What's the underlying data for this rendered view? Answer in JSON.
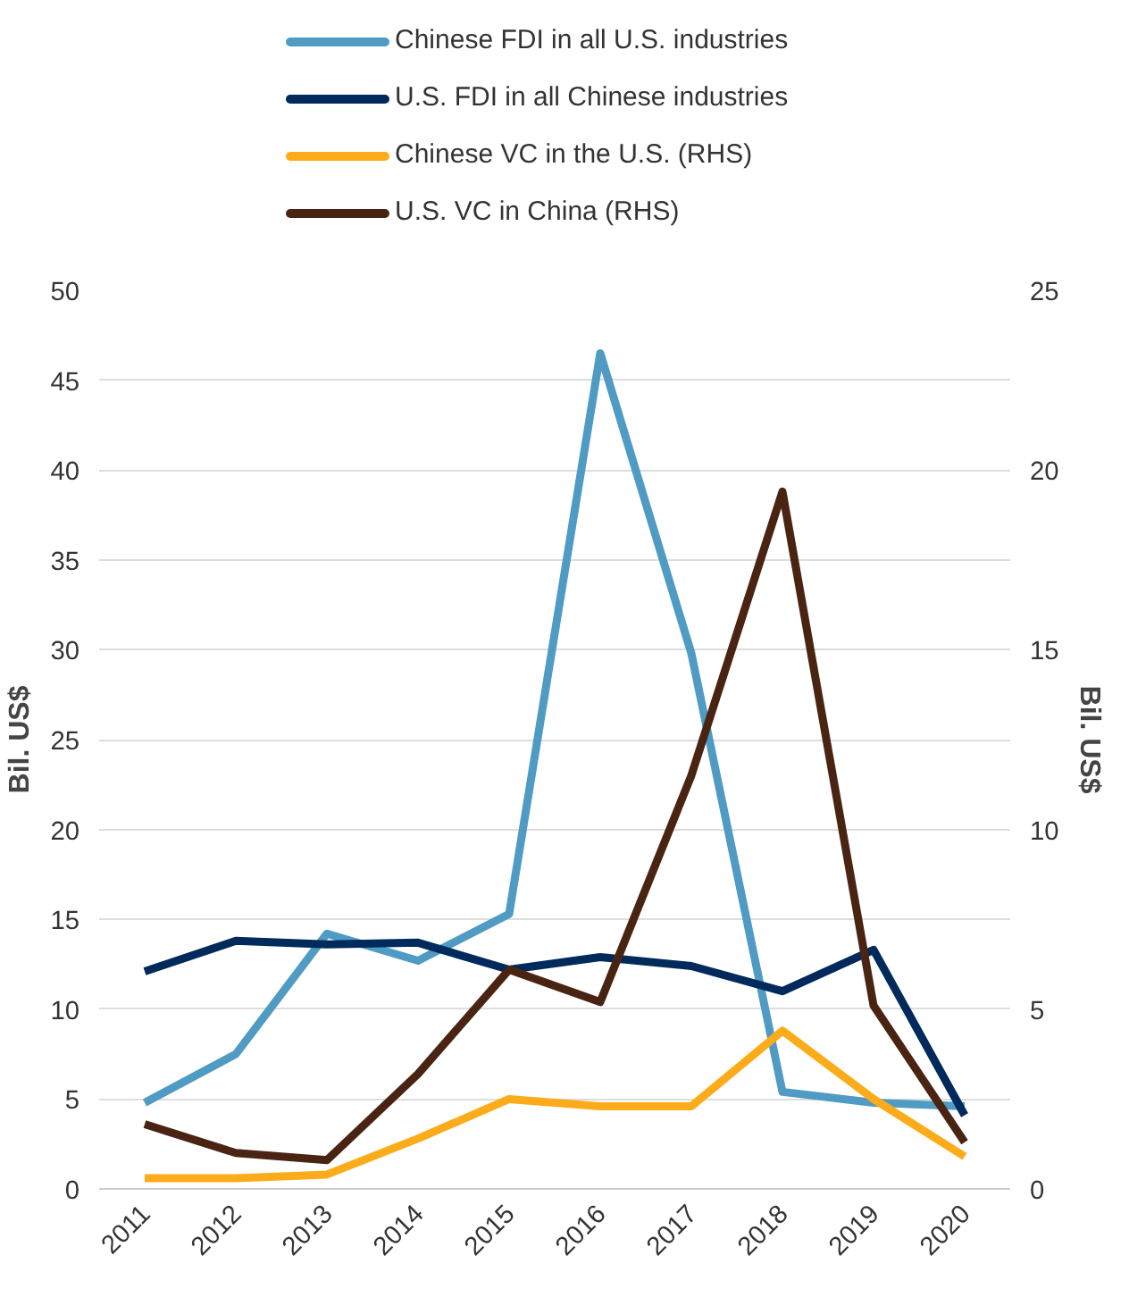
{
  "chart_data": {
    "type": "line",
    "categories": [
      "2011",
      "2012",
      "2013",
      "2014",
      "2015",
      "2016",
      "2017",
      "2018",
      "2019",
      "2020"
    ],
    "ylabel": "Bil. US$",
    "y2label": "Bil. US$",
    "ylim": [
      0,
      50
    ],
    "yticks": [
      0,
      5,
      10,
      15,
      20,
      25,
      30,
      35,
      40,
      45,
      50
    ],
    "y2lim": [
      0,
      25
    ],
    "y2ticks": [
      0,
      5,
      10,
      15,
      20,
      25
    ],
    "grid": "y",
    "legend": "top",
    "series": [
      {
        "name": "Chinese FDI in all U.S. industries",
        "color": "#4f9bc4",
        "values": [
          4.8,
          7.5,
          14.2,
          12.7,
          15.3,
          46.5,
          29.8,
          5.4,
          4.8,
          4.6
        ]
      },
      {
        "name": "U.S. FDI in all Chinese industries",
        "color": "#002a5c",
        "values": [
          12.1,
          13.8,
          13.6,
          13.7,
          12.2,
          12.9,
          12.4,
          11.0,
          13.3,
          4.1
        ]
      },
      {
        "name": "Chinese VC in the U.S. (RHS)",
        "color": "#fcac1a",
        "axis": "y2",
        "values": [
          0.3,
          0.3,
          0.4,
          1.4,
          2.5,
          2.3,
          2.3,
          4.4,
          2.5,
          0.9
        ]
      },
      {
        "name": "U.S. VC in China (RHS)",
        "color": "#4a2413",
        "axis": "y2",
        "values": [
          1.8,
          1.0,
          0.8,
          3.2,
          6.1,
          5.2,
          11.5,
          19.4,
          5.1,
          1.3
        ]
      }
    ]
  }
}
